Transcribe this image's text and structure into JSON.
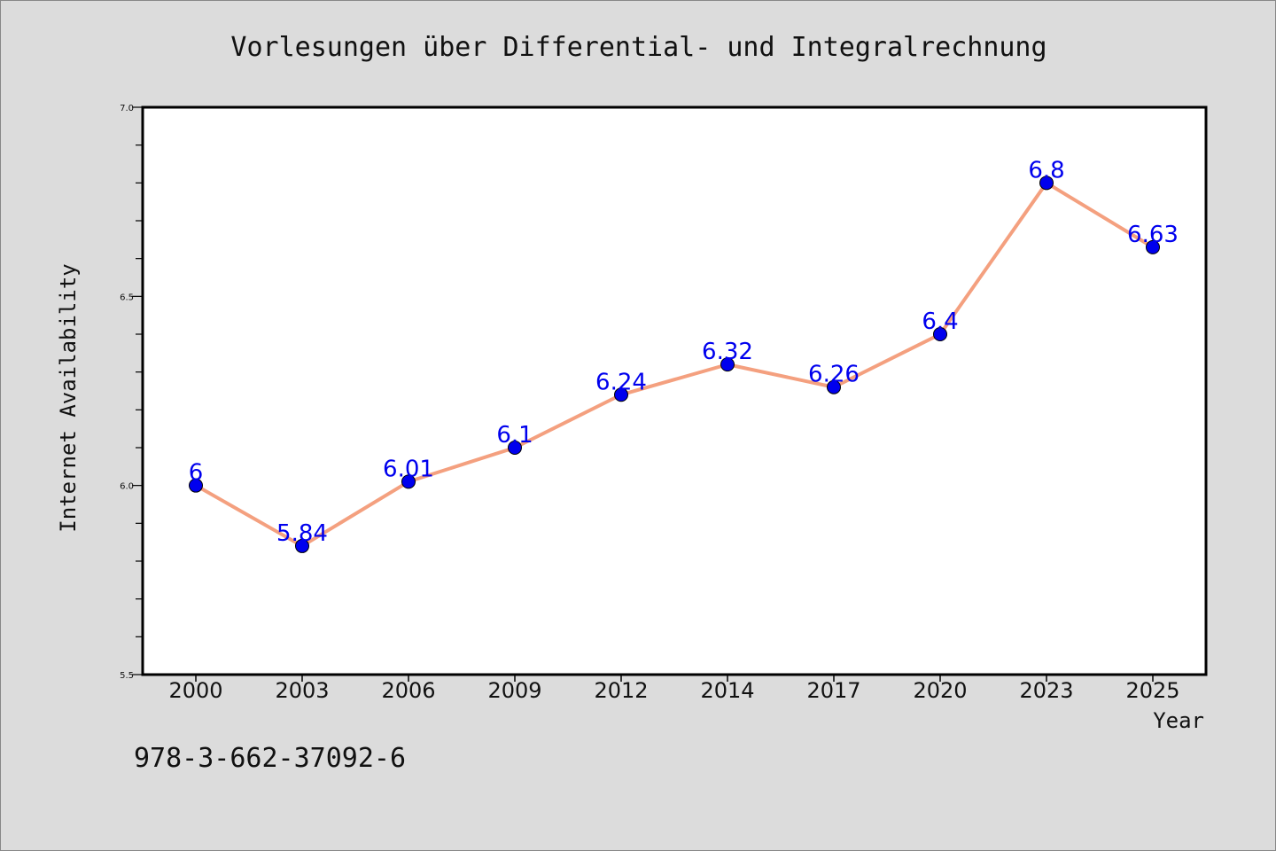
{
  "chart_data": {
    "type": "line",
    "title": "Vorlesungen über Differential- und Integralrechnung",
    "xlabel": "Year",
    "ylabel": "Internet Availability",
    "categories": [
      "2000",
      "2003",
      "2006",
      "2009",
      "2012",
      "2014",
      "2017",
      "2020",
      "2023",
      "2025"
    ],
    "series": [
      {
        "values": [
          6,
          5.84,
          6.01,
          6.1,
          6.24,
          6.32,
          6.26,
          6.4,
          6.8,
          6.63
        ],
        "labels": [
          "6",
          "5.84",
          "6.01",
          "6.1",
          "6.24",
          "6.32",
          "6.26",
          "6.4",
          "6.8",
          "6.63"
        ]
      }
    ],
    "ylim": [
      5.5,
      7.0
    ],
    "yticks": [
      "5.5",
      "6.0",
      "6.5",
      "7.0"
    ],
    "grid": false,
    "line_color": "#f4a07f",
    "marker_color": "#0000ee",
    "label_color": "#0000ee",
    "background_color": "#dcdcdc",
    "plot_background_color": "#ffffff"
  },
  "footer": {
    "isbn": "978-3-662-37092-6"
  }
}
